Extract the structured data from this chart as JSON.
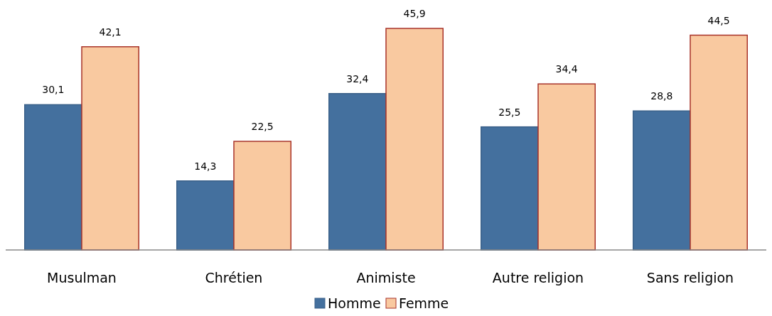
{
  "chart_data": {
    "type": "bar",
    "categories": [
      "Musulman",
      "Chrétien",
      "Animiste",
      "Autre religion",
      "Sans religion"
    ],
    "series": [
      {
        "name": "Homme",
        "color": "#44709e",
        "values": [
          30.1,
          14.3,
          32.4,
          25.5,
          28.8
        ],
        "value_labels": [
          "30,1",
          "14,3",
          "32,4",
          "25,5",
          "28,8"
        ]
      },
      {
        "name": "Femme",
        "color": "#f9c9a0",
        "values": [
          42.1,
          22.5,
          45.9,
          34.4,
          44.5
        ],
        "value_labels": [
          "42,1",
          "22,5",
          "45,9",
          "34,4",
          "44,5"
        ]
      }
    ],
    "legend": "bottom",
    "grid": false
  }
}
